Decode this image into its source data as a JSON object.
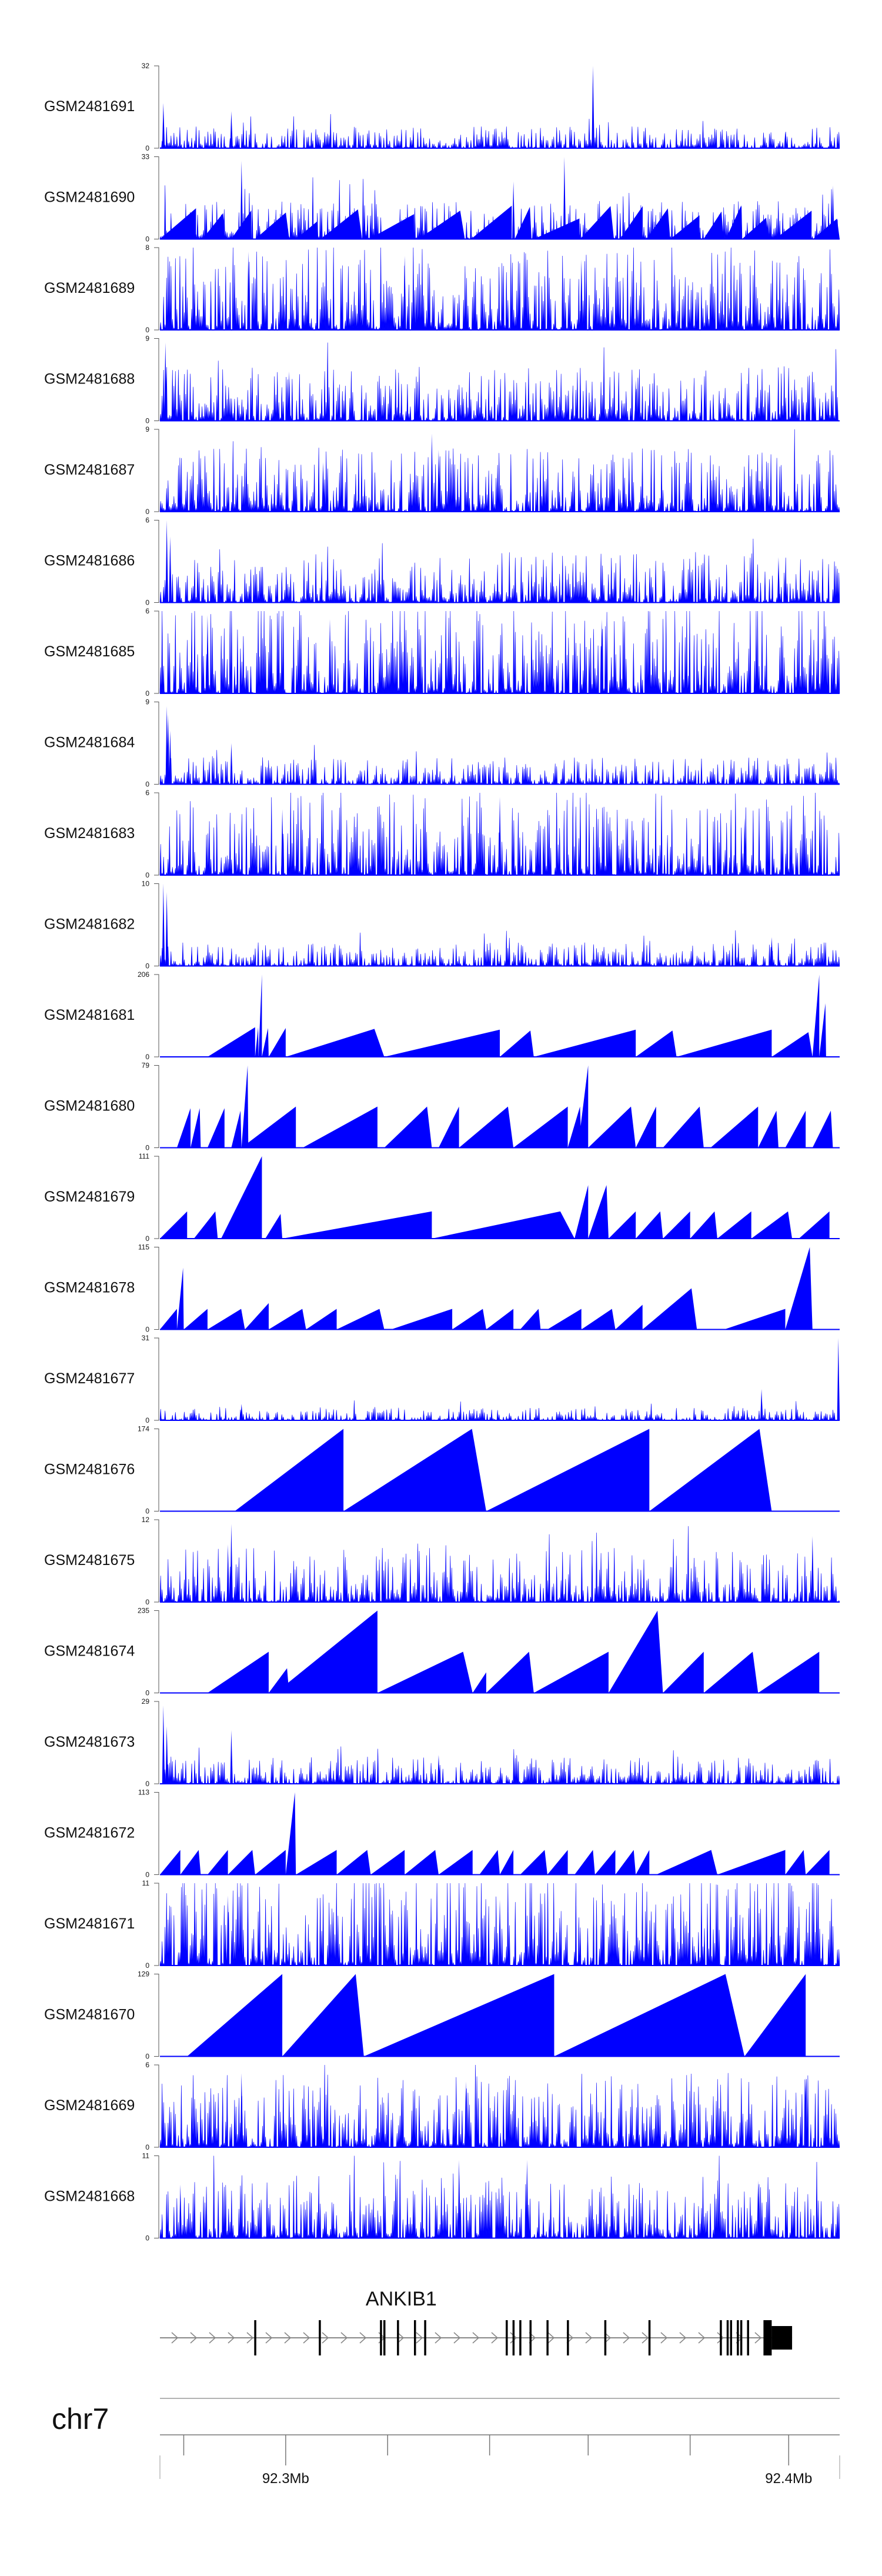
{
  "chart_data": {
    "type": "area",
    "tracks": [
      {
        "name": "GSM2481691",
        "ymax": "32",
        "ymin": "0",
        "kind": "noise",
        "base": 0.12,
        "spikes": [
          [
            0.005,
            0.55
          ],
          [
            0.105,
            0.45
          ],
          [
            0.637,
            1.0
          ],
          [
            0.92,
            0.2
          ]
        ],
        "density": 1.0
      },
      {
        "name": "GSM2481690",
        "ymax": "33",
        "ymin": "0",
        "kind": "mixed",
        "base": 0.35,
        "spikes": [
          [
            0.12,
            0.95
          ],
          [
            0.595,
            1.0
          ],
          [
            0.52,
            0.7
          ],
          [
            0.99,
            0.65
          ]
        ],
        "density": 0.35
      },
      {
        "name": "GSM2481689",
        "ymax": "8",
        "ymin": "0",
        "kind": "noise",
        "base": 0.45,
        "spikes": [
          [
            0.13,
            0.95
          ],
          [
            0.36,
            0.9
          ],
          [
            0.62,
            0.85
          ]
        ],
        "density": 1.0
      },
      {
        "name": "GSM2481688",
        "ymax": "9",
        "ymin": "0",
        "kind": "noise",
        "base": 0.3,
        "spikes": [
          [
            0.008,
            0.95
          ],
          [
            0.19,
            0.6
          ],
          [
            0.7,
            0.5
          ]
        ],
        "density": 1.0
      },
      {
        "name": "GSM2481687",
        "ymax": "9",
        "ymin": "0",
        "kind": "noise",
        "base": 0.35,
        "spikes": [
          [
            0.4,
            0.95
          ],
          [
            0.41,
            0.75
          ],
          [
            0.24,
            0.6
          ],
          [
            0.69,
            0.6
          ]
        ],
        "density": 1.0
      },
      {
        "name": "GSM2481686",
        "ymax": "6",
        "ymin": "0",
        "kind": "noise",
        "base": 0.28,
        "spikes": [
          [
            0.01,
            1.0
          ],
          [
            0.015,
            0.8
          ],
          [
            0.91,
            0.55
          ]
        ],
        "density": 1.0
      },
      {
        "name": "GSM2481685",
        "ymax": "6",
        "ymin": "0",
        "kind": "noise",
        "base": 0.55,
        "spikes": [
          [
            0.07,
            0.95
          ],
          [
            0.25,
            0.9
          ],
          [
            0.65,
            0.9
          ]
        ],
        "density": 1.0
      },
      {
        "name": "GSM2481684",
        "ymax": "9",
        "ymin": "0",
        "kind": "noise",
        "base": 0.15,
        "spikes": [
          [
            0.01,
            0.95
          ],
          [
            0.012,
            0.85
          ],
          [
            0.015,
            0.65
          ],
          [
            0.105,
            0.5
          ]
        ],
        "density": 1.0
      },
      {
        "name": "GSM2481683",
        "ymax": "6",
        "ymin": "0",
        "kind": "noise",
        "base": 0.45,
        "spikes": [
          [
            0.18,
            0.8
          ],
          [
            0.5,
            0.95
          ],
          [
            0.86,
            0.7
          ]
        ],
        "density": 1.0
      },
      {
        "name": "GSM2481682",
        "ymax": "10",
        "ymin": "0",
        "kind": "noise",
        "base": 0.13,
        "spikes": [
          [
            0.005,
            1.0
          ],
          [
            0.01,
            0.9
          ],
          [
            0.9,
            0.35
          ]
        ],
        "density": 1.0
      },
      {
        "name": "GSM2481681",
        "ymax": "206",
        "ymin": "0",
        "kind": "peaks",
        "peaks": [
          [
            0.07,
            0.14,
            0.36
          ],
          [
            0.14,
            0.145,
            0.36
          ],
          [
            0.145,
            0.15,
            1.0
          ],
          [
            0.15,
            0.16,
            0.35
          ],
          [
            0.16,
            0.185,
            0.35
          ],
          [
            0.185,
            0.33,
            0.34
          ],
          [
            0.33,
            0.5,
            0.33
          ],
          [
            0.5,
            0.55,
            0.32
          ],
          [
            0.55,
            0.7,
            0.33
          ],
          [
            0.7,
            0.76,
            0.32
          ],
          [
            0.76,
            0.9,
            0.33
          ],
          [
            0.9,
            0.96,
            0.3
          ],
          [
            0.96,
            0.97,
            1.0
          ],
          [
            0.97,
            0.98,
            0.65
          ]
        ]
      },
      {
        "name": "GSM2481680",
        "ymax": "79",
        "ymin": "0",
        "kind": "peaks",
        "peaks": [
          [
            0.025,
            0.045,
            0.48
          ],
          [
            0.045,
            0.06,
            0.48
          ],
          [
            0.07,
            0.095,
            0.48
          ],
          [
            0.105,
            0.12,
            0.45
          ],
          [
            0.12,
            0.2,
            0.5
          ],
          [
            0.12,
            0.13,
            1.0
          ],
          [
            0.21,
            0.32,
            0.5
          ],
          [
            0.33,
            0.4,
            0.5
          ],
          [
            0.41,
            0.44,
            0.5
          ],
          [
            0.44,
            0.52,
            0.5
          ],
          [
            0.52,
            0.6,
            0.5
          ],
          [
            0.6,
            0.62,
            0.5
          ],
          [
            0.615,
            0.63,
            1.0
          ],
          [
            0.63,
            0.7,
            0.5
          ],
          [
            0.7,
            0.73,
            0.5
          ],
          [
            0.74,
            0.8,
            0.5
          ],
          [
            0.81,
            0.88,
            0.5
          ],
          [
            0.88,
            0.91,
            0.45
          ],
          [
            0.92,
            0.95,
            0.45
          ],
          [
            0.96,
            0.99,
            0.45
          ]
        ]
      },
      {
        "name": "GSM2481679",
        "ymax": "111",
        "ymin": "0",
        "kind": "peaks",
        "peaks": [
          [
            0.0,
            0.04,
            0.33
          ],
          [
            0.05,
            0.085,
            0.33
          ],
          [
            0.09,
            0.15,
            1.0
          ],
          [
            0.155,
            0.18,
            0.3
          ],
          [
            0.18,
            0.4,
            0.33
          ],
          [
            0.4,
            0.61,
            0.33
          ],
          [
            0.61,
            0.63,
            0.65
          ],
          [
            0.63,
            0.66,
            0.65
          ],
          [
            0.66,
            0.7,
            0.33
          ],
          [
            0.7,
            0.74,
            0.33
          ],
          [
            0.74,
            0.78,
            0.33
          ],
          [
            0.78,
            0.82,
            0.33
          ],
          [
            0.82,
            0.87,
            0.33
          ],
          [
            0.87,
            0.93,
            0.33
          ],
          [
            0.94,
            0.985,
            0.33
          ]
        ]
      },
      {
        "name": "GSM2481678",
        "ymax": "115",
        "ymin": "0",
        "kind": "peaks",
        "peaks": [
          [
            0.0,
            0.025,
            0.25
          ],
          [
            0.025,
            0.035,
            0.75
          ],
          [
            0.035,
            0.07,
            0.25
          ],
          [
            0.07,
            0.125,
            0.25
          ],
          [
            0.125,
            0.16,
            0.32
          ],
          [
            0.16,
            0.215,
            0.25
          ],
          [
            0.215,
            0.26,
            0.25
          ],
          [
            0.26,
            0.33,
            0.25
          ],
          [
            0.34,
            0.43,
            0.25
          ],
          [
            0.43,
            0.48,
            0.25
          ],
          [
            0.48,
            0.52,
            0.25
          ],
          [
            0.53,
            0.56,
            0.25
          ],
          [
            0.57,
            0.62,
            0.25
          ],
          [
            0.62,
            0.67,
            0.25
          ],
          [
            0.67,
            0.71,
            0.3
          ],
          [
            0.71,
            0.79,
            0.5
          ],
          [
            0.83,
            0.92,
            0.25
          ],
          [
            0.92,
            0.96,
            1.0
          ]
        ]
      },
      {
        "name": "GSM2481677",
        "ymax": "31",
        "ymin": "0",
        "kind": "noise",
        "base": 0.07,
        "spikes": [
          [
            0.998,
            1.0
          ],
          [
            0.885,
            0.38
          ],
          [
            0.12,
            0.2
          ]
        ],
        "density": 1.0
      },
      {
        "name": "GSM2481676",
        "ymax": "174",
        "ymin": "0",
        "kind": "peaks",
        "peaks": [
          [
            0.11,
            0.27,
            1.0
          ],
          [
            0.27,
            0.48,
            1.0
          ],
          [
            0.48,
            0.72,
            1.0
          ],
          [
            0.72,
            0.9,
            1.0
          ]
        ]
      },
      {
        "name": "GSM2481675",
        "ymax": "12",
        "ymin": "0",
        "kind": "noise",
        "base": 0.3,
        "spikes": [
          [
            0.105,
            0.95
          ],
          [
            0.1,
            0.7
          ],
          [
            0.96,
            0.8
          ]
        ],
        "density": 1.0
      },
      {
        "name": "GSM2481674",
        "ymax": "235",
        "ymin": "0",
        "kind": "peaks",
        "peaks": [
          [
            0.07,
            0.16,
            0.5
          ],
          [
            0.16,
            0.19,
            0.3
          ],
          [
            0.17,
            0.32,
            1.0
          ],
          [
            0.32,
            0.46,
            0.5
          ],
          [
            0.46,
            0.48,
            0.25
          ],
          [
            0.48,
            0.55,
            0.5
          ],
          [
            0.55,
            0.66,
            0.5
          ],
          [
            0.66,
            0.74,
            1.0
          ],
          [
            0.74,
            0.8,
            0.5
          ],
          [
            0.8,
            0.88,
            0.5
          ],
          [
            0.88,
            0.97,
            0.5
          ]
        ]
      },
      {
        "name": "GSM2481673",
        "ymax": "29",
        "ymin": "0",
        "kind": "noise",
        "base": 0.15,
        "spikes": [
          [
            0.005,
            0.95
          ],
          [
            0.01,
            0.7
          ],
          [
            0.105,
            0.65
          ],
          [
            0.41,
            0.35
          ]
        ],
        "density": 1.0
      },
      {
        "name": "GSM2481672",
        "ymax": "113",
        "ymin": "0",
        "kind": "peaks",
        "peaks": [
          [
            0.0,
            0.03,
            0.3
          ],
          [
            0.03,
            0.06,
            0.3
          ],
          [
            0.07,
            0.1,
            0.3
          ],
          [
            0.1,
            0.14,
            0.3
          ],
          [
            0.14,
            0.185,
            0.3
          ],
          [
            0.185,
            0.2,
            1.0
          ],
          [
            0.2,
            0.26,
            0.3
          ],
          [
            0.26,
            0.31,
            0.3
          ],
          [
            0.31,
            0.36,
            0.3
          ],
          [
            0.36,
            0.41,
            0.3
          ],
          [
            0.41,
            0.46,
            0.3
          ],
          [
            0.47,
            0.5,
            0.3
          ],
          [
            0.5,
            0.52,
            0.3
          ],
          [
            0.53,
            0.57,
            0.3
          ],
          [
            0.57,
            0.6,
            0.3
          ],
          [
            0.61,
            0.64,
            0.3
          ],
          [
            0.64,
            0.67,
            0.3
          ],
          [
            0.67,
            0.7,
            0.3
          ],
          [
            0.7,
            0.72,
            0.3
          ],
          [
            0.73,
            0.82,
            0.3
          ],
          [
            0.82,
            0.92,
            0.3
          ],
          [
            0.92,
            0.95,
            0.3
          ],
          [
            0.95,
            0.985,
            0.3
          ]
        ]
      },
      {
        "name": "GSM2481671",
        "ymax": "11",
        "ymin": "0",
        "kind": "noise",
        "base": 0.5,
        "spikes": [
          [
            0.1,
            0.85
          ],
          [
            0.5,
            0.8
          ],
          [
            0.9,
            0.85
          ]
        ],
        "density": 0.9
      },
      {
        "name": "GSM2481670",
        "ymax": "129",
        "ymin": "0",
        "kind": "peaks",
        "peaks": [
          [
            0.04,
            0.18,
            1.0
          ],
          [
            0.18,
            0.3,
            1.0
          ],
          [
            0.3,
            0.58,
            1.0
          ],
          [
            0.58,
            0.86,
            1.0
          ],
          [
            0.86,
            0.95,
            1.0
          ]
        ]
      },
      {
        "name": "GSM2481669",
        "ymax": "6",
        "ymin": "0",
        "kind": "noise",
        "base": 0.4,
        "spikes": [
          [
            0.12,
            0.9
          ],
          [
            0.45,
            0.8
          ],
          [
            0.95,
            0.85
          ]
        ],
        "density": 1.0
      },
      {
        "name": "GSM2481668",
        "ymax": "11",
        "ymin": "0",
        "kind": "noise",
        "base": 0.35,
        "spikes": [
          [
            0.44,
            0.95
          ],
          [
            0.54,
            0.95
          ],
          [
            0.88,
            0.7
          ],
          [
            0.03,
            0.65
          ]
        ],
        "density": 1.0
      }
    ],
    "gene": {
      "name": "ANKIB1",
      "exons": [
        0.14,
        0.235,
        0.325,
        0.33,
        0.35,
        0.375,
        0.39,
        0.51,
        0.52,
        0.53,
        0.545,
        0.57,
        0.6,
        0.655,
        0.72,
        0.825,
        0.835,
        0.84,
        0.85,
        0.855,
        0.865
      ],
      "cds_end_start": 0.9,
      "utr_end": 0.93
    },
    "axis": {
      "chrom": "chr7",
      "tick_labels": [
        {
          "pos": 0.185,
          "label": "92.3Mb"
        },
        {
          "pos": 0.925,
          "label": "92.4Mb"
        }
      ],
      "minor_ticks": [
        0.035,
        0.185,
        0.335,
        0.485,
        0.63,
        0.78,
        0.925
      ]
    },
    "colors": {
      "signal": "#0000ff",
      "ink": "#1a1a1a",
      "exon": "#000000",
      "axis": "#555555"
    }
  }
}
